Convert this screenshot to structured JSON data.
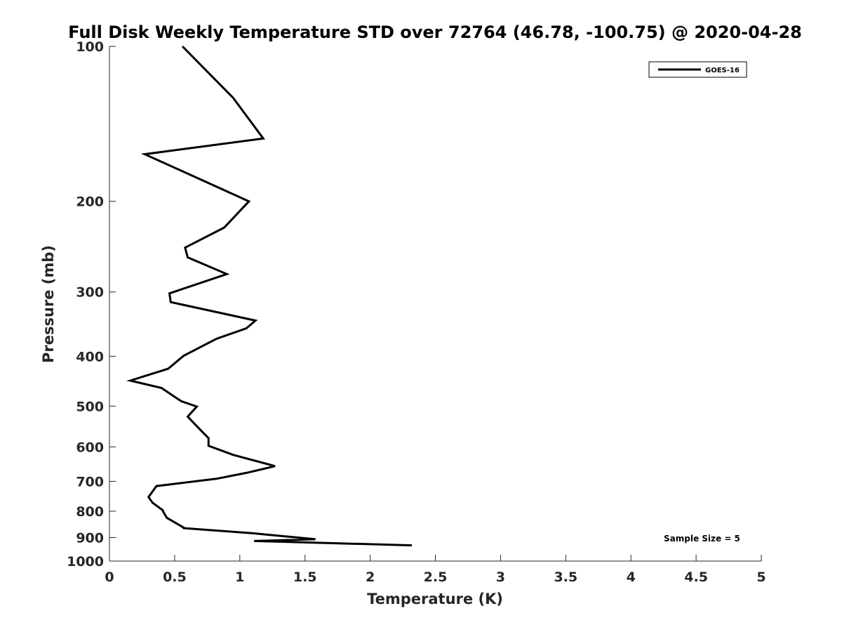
{
  "chart_data": {
    "type": "line",
    "title": "Full Disk Weekly Temperature STD over 72764 (46.78, -100.75) @ 2020-04-28",
    "xlabel": "Temperature (K)",
    "ylabel": "Pressure (mb)",
    "xlim": [
      0,
      5
    ],
    "ylim": [
      100,
      1000
    ],
    "y_scale": "log",
    "y_reversed": true,
    "grid": false,
    "legend_position": "top-right",
    "x_ticks": [
      "0",
      "0.5",
      "1",
      "1.5",
      "2",
      "2.5",
      "3",
      "3.5",
      "4",
      "4.5",
      "5"
    ],
    "y_ticks": [
      "100",
      "200",
      "300",
      "400",
      "500",
      "600",
      "700",
      "800",
      "900",
      "1000"
    ],
    "series": [
      {
        "name": "GOES-16",
        "color": "#000000",
        "x": [
          0.56,
          0.95,
          1.18,
          0.27,
          0.67,
          1.07,
          0.88,
          0.58,
          0.6,
          0.9,
          0.46,
          0.47,
          1.12,
          1.05,
          0.82,
          0.57,
          0.45,
          0.16,
          0.4,
          0.55,
          0.67,
          0.6,
          0.7,
          0.76,
          0.76,
          0.95,
          1.27,
          1.05,
          0.82,
          0.36,
          0.3,
          0.33,
          0.41,
          0.41,
          0.44,
          0.57,
          0.57,
          0.68,
          1.1,
          1.58,
          1.11,
          2.32
        ],
        "y": [
          100,
          126,
          151,
          162,
          180,
          200,
          225,
          246,
          257,
          277,
          302,
          314,
          341,
          353,
          370,
          399,
          423,
          446,
          461,
          489,
          501,
          524,
          557,
          577,
          597,
          622,
          654,
          674,
          692,
          715,
          751,
          770,
          797,
          800,
          824,
          861,
          863,
          867,
          883,
          907,
          914,
          932
        ]
      }
    ],
    "annotations": [
      "Sample Size = 5"
    ]
  }
}
